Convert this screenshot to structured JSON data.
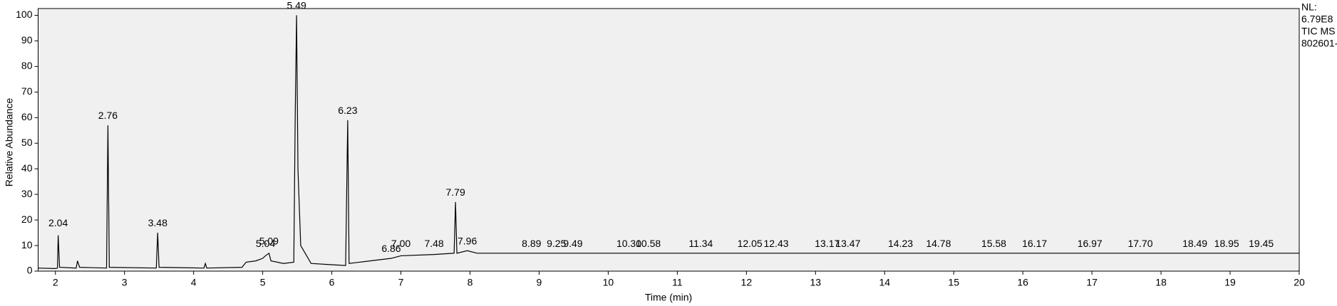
{
  "chart_data": {
    "type": "line",
    "xlabel": "Time (min)",
    "ylabel": "Relative Abundance",
    "side_labels": [
      "NL:",
      "6.79E8",
      "TIC  MS",
      "802601-"
    ],
    "color": "#000000",
    "xlim": [
      1.75,
      20
    ],
    "ylim": [
      0,
      100
    ],
    "xticks": [
      2,
      3,
      4,
      5,
      6,
      7,
      8,
      9,
      10,
      11,
      12,
      13,
      14,
      15,
      16,
      17,
      18,
      19,
      20
    ],
    "yticks": [
      0,
      10,
      20,
      30,
      40,
      50,
      60,
      70,
      80,
      90,
      100
    ],
    "x": [
      1.75,
      2.0,
      2.03,
      2.04,
      2.06,
      2.3,
      2.32,
      2.35,
      2.74,
      2.76,
      2.78,
      3.46,
      3.48,
      3.5,
      4.15,
      4.17,
      4.19,
      4.7,
      4.76,
      4.9,
      5.0,
      5.04,
      5.09,
      5.12,
      5.3,
      5.45,
      5.47,
      5.49,
      5.51,
      5.55,
      5.7,
      6.0,
      6.2,
      6.22,
      6.23,
      6.25,
      6.4,
      6.86,
      7.0,
      7.48,
      7.77,
      7.79,
      7.81,
      7.96,
      8.1,
      10,
      12,
      14,
      16,
      18,
      20
    ],
    "values": [
      1.2,
      1.0,
      1.2,
      14,
      1.5,
      1.2,
      4,
      1.5,
      1.2,
      57,
      1.5,
      1.2,
      15,
      1.5,
      1.2,
      3,
      1.2,
      1.5,
      3.5,
      4,
      5,
      6,
      7,
      4,
      3,
      3.5,
      60,
      100,
      40,
      10,
      3,
      2.5,
      2.2,
      40,
      59,
      3,
      3.5,
      5,
      6,
      6.5,
      7,
      27,
      7,
      8,
      7,
      7,
      7,
      7,
      7,
      7,
      7
    ],
    "peaks": [
      {
        "x": 2.04,
        "y": 16
      },
      {
        "x": 2.76,
        "y": 58
      },
      {
        "x": 3.48,
        "y": 16
      },
      {
        "x": 5.04,
        "y": 8
      },
      {
        "x": 5.09,
        "y": 9
      },
      {
        "x": 5.49,
        "y": 101
      },
      {
        "x": 6.23,
        "y": 60
      },
      {
        "x": 6.86,
        "y": 6
      },
      {
        "x": 7.0,
        "y": 8
      },
      {
        "x": 7.48,
        "y": 8
      },
      {
        "x": 7.79,
        "y": 28
      },
      {
        "x": 7.96,
        "y": 9
      },
      {
        "x": 8.89,
        "y": 8
      },
      {
        "x": 9.25,
        "y": 8
      },
      {
        "x": 9.49,
        "y": 8
      },
      {
        "x": 10.3,
        "y": 8
      },
      {
        "x": 10.58,
        "y": 8
      },
      {
        "x": 11.34,
        "y": 8
      },
      {
        "x": 12.05,
        "y": 8
      },
      {
        "x": 12.43,
        "y": 8
      },
      {
        "x": 13.17,
        "y": 8
      },
      {
        "x": 13.47,
        "y": 8
      },
      {
        "x": 14.23,
        "y": 8
      },
      {
        "x": 14.78,
        "y": 8
      },
      {
        "x": 15.58,
        "y": 8
      },
      {
        "x": 16.17,
        "y": 8
      },
      {
        "x": 16.97,
        "y": 8
      },
      {
        "x": 17.7,
        "y": 8
      },
      {
        "x": 18.49,
        "y": 8
      },
      {
        "x": 18.95,
        "y": 8
      },
      {
        "x": 19.45,
        "y": 8
      }
    ],
    "peak_labels": [
      "2.04",
      "2.76",
      "3.48",
      "5.04",
      "5.09",
      "5.49",
      "6.23",
      "6.86",
      "7.00",
      "7.48",
      "7.79",
      "7.96",
      "8.89",
      "9.25",
      "9.49",
      "10.30",
      "10.58",
      "11.34",
      "12.05",
      "12.43",
      "13.17",
      "13.47",
      "14.23",
      "14.78",
      "15.58",
      "16.17",
      "16.97",
      "17.70",
      "18.49",
      "18.95",
      "19.45"
    ]
  }
}
